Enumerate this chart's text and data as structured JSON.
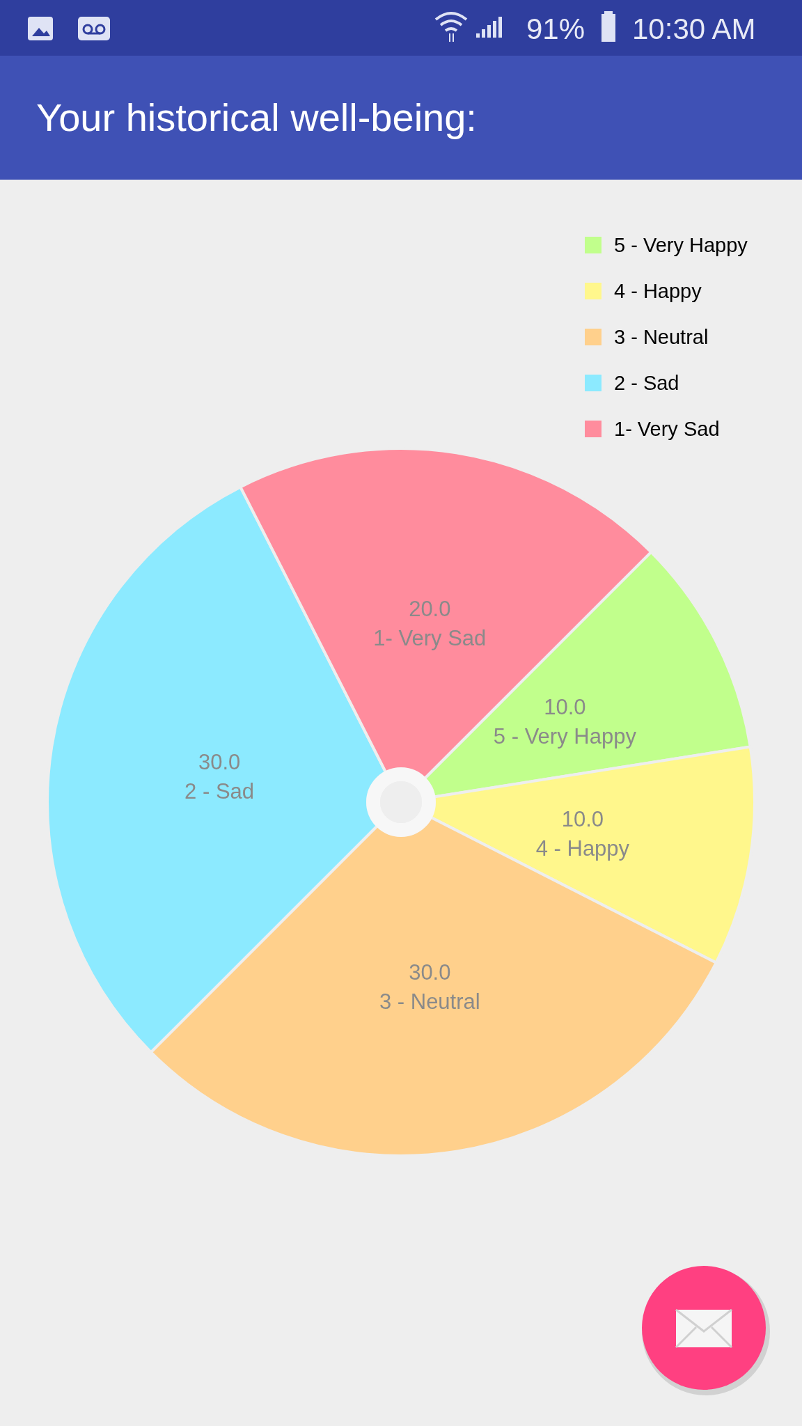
{
  "chart_data": {
    "type": "pie",
    "title": "Your historical well-being:",
    "categories": [
      "5 - Very Happy",
      "4 - Happy",
      "3 - Neutral",
      "2 - Sad",
      "1- Very Sad"
    ],
    "values": [
      10,
      10,
      30,
      30,
      20
    ],
    "colors": [
      "#c1ff8c",
      "#fff78c",
      "#ffd08c",
      "#8ceaff",
      "#ff8c9d"
    ],
    "value_labels": [
      "10.0",
      "10.0",
      "30.0",
      "30.0",
      "20.0"
    ],
    "legend": "top right",
    "annotations": [
      "91%",
      "10:30 AM"
    ]
  }
}
